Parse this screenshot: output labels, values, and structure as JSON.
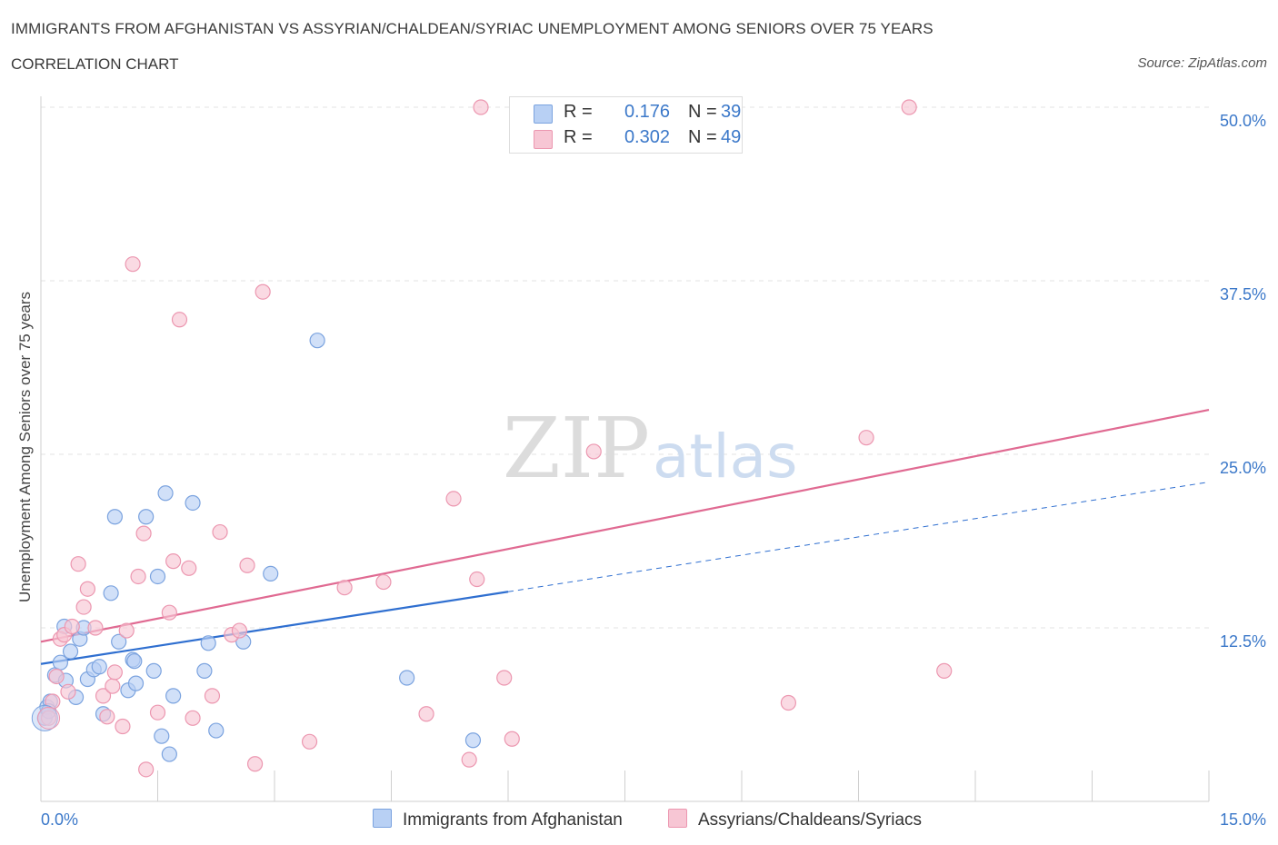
{
  "header": {
    "title": "IMMIGRANTS FROM AFGHANISTAN VS ASSYRIAN/CHALDEAN/SYRIAC UNEMPLOYMENT AMONG SENIORS OVER 75 YEARS",
    "subtitle": "CORRELATION CHART",
    "source": "Source: ZipAtlas.com"
  },
  "legend": {
    "blue": {
      "r_label": "R =",
      "r_value": "0.176",
      "n_label": "N =",
      "n_value": "39"
    },
    "pink": {
      "r_label": "R =",
      "r_value": "0.302",
      "n_label": "N =",
      "n_value": "49"
    }
  },
  "bottom_legend": {
    "blue_label": "Immigrants from Afghanistan",
    "pink_label": "Assyrians/Chaldeans/Syriacs"
  },
  "colors": {
    "blue_fill": "#b8d0f4",
    "blue_stroke": "#7ba3df",
    "blue_line": "#2f6fd0",
    "pink_fill": "#f7c6d4",
    "pink_stroke": "#ec97b0",
    "pink_line": "#e06a92",
    "tick_text": "#3b78c9",
    "grid": "#e3e3e3"
  },
  "chart_data": {
    "type": "scatter",
    "title": "IMMIGRANTS FROM AFGHANISTAN VS ASSYRIAN/CHALDEAN/SYRIAC UNEMPLOYMENT AMONG SENIORS OVER 75 YEARS",
    "xlabel": "",
    "ylabel": "Unemployment Among Seniors over 75 years",
    "xlim": [
      0,
      15
    ],
    "ylim": [
      0,
      50
    ],
    "x_tick_labels": [
      "0.0%",
      "15.0%"
    ],
    "y_ticks": [
      12.5,
      25,
      37.5,
      50
    ],
    "y_tick_labels": [
      "12.5%",
      "25.0%",
      "37.5%",
      "50.0%"
    ],
    "grid": true,
    "watermark": "ZIPatlas",
    "series": [
      {
        "name": "Immigrants from Afghanistan",
        "color": "#b8d0f4",
        "points": [
          [
            0.05,
            6.0
          ],
          [
            0.08,
            6.8
          ],
          [
            0.12,
            7.2
          ],
          [
            0.18,
            9.1
          ],
          [
            0.25,
            10.0
          ],
          [
            0.32,
            8.7
          ],
          [
            0.38,
            10.8
          ],
          [
            0.45,
            7.5
          ],
          [
            0.5,
            11.7
          ],
          [
            0.55,
            12.5
          ],
          [
            0.6,
            8.8
          ],
          [
            0.68,
            9.5
          ],
          [
            0.8,
            6.3
          ],
          [
            0.9,
            15.0
          ],
          [
            0.95,
            20.5
          ],
          [
            1.0,
            11.5
          ],
          [
            1.12,
            8.0
          ],
          [
            1.18,
            10.2
          ],
          [
            1.22,
            8.5
          ],
          [
            1.35,
            20.5
          ],
          [
            1.45,
            9.4
          ],
          [
            1.5,
            16.2
          ],
          [
            1.55,
            4.7
          ],
          [
            1.6,
            22.2
          ],
          [
            1.65,
            3.4
          ],
          [
            1.7,
            7.6
          ],
          [
            1.95,
            21.5
          ],
          [
            2.1,
            9.4
          ],
          [
            2.15,
            11.4
          ],
          [
            2.25,
            5.1
          ],
          [
            2.6,
            11.5
          ],
          [
            2.95,
            16.4
          ],
          [
            3.55,
            33.2
          ],
          [
            4.7,
            8.9
          ],
          [
            5.55,
            4.4
          ],
          [
            0.1,
            6.5
          ],
          [
            0.3,
            12.6
          ],
          [
            0.75,
            9.7
          ],
          [
            1.2,
            10.1
          ]
        ]
      },
      {
        "name": "Assyrians/Chaldeans/Syriacs",
        "color": "#f7c6d4",
        "points": [
          [
            0.1,
            6.0
          ],
          [
            0.15,
            7.2
          ],
          [
            0.2,
            9.0
          ],
          [
            0.25,
            11.7
          ],
          [
            0.3,
            12.0
          ],
          [
            0.35,
            7.9
          ],
          [
            0.4,
            12.6
          ],
          [
            0.48,
            17.1
          ],
          [
            0.55,
            14.0
          ],
          [
            0.6,
            15.3
          ],
          [
            0.7,
            12.5
          ],
          [
            0.8,
            7.6
          ],
          [
            0.85,
            6.1
          ],
          [
            0.92,
            8.3
          ],
          [
            0.95,
            9.3
          ],
          [
            1.05,
            5.4
          ],
          [
            1.1,
            12.3
          ],
          [
            1.18,
            38.7
          ],
          [
            1.25,
            16.2
          ],
          [
            1.32,
            19.3
          ],
          [
            1.35,
            2.3
          ],
          [
            1.5,
            6.4
          ],
          [
            1.65,
            13.6
          ],
          [
            1.7,
            17.3
          ],
          [
            1.78,
            34.7
          ],
          [
            1.9,
            16.8
          ],
          [
            1.95,
            6.0
          ],
          [
            2.2,
            7.6
          ],
          [
            2.3,
            19.4
          ],
          [
            2.45,
            12.0
          ],
          [
            2.55,
            12.3
          ],
          [
            2.65,
            17.0
          ],
          [
            2.75,
            2.7
          ],
          [
            2.85,
            36.7
          ],
          [
            3.45,
            4.3
          ],
          [
            3.9,
            15.4
          ],
          [
            4.4,
            15.8
          ],
          [
            4.95,
            6.3
          ],
          [
            5.3,
            21.8
          ],
          [
            5.5,
            3.0
          ],
          [
            5.6,
            16.0
          ],
          [
            5.65,
            50.0
          ],
          [
            5.95,
            8.9
          ],
          [
            6.05,
            4.5
          ],
          [
            7.1,
            25.2
          ],
          [
            9.6,
            7.1
          ],
          [
            10.6,
            26.2
          ],
          [
            11.15,
            50.0
          ],
          [
            11.6,
            9.4
          ]
        ]
      }
    ],
    "trend_lines": [
      {
        "series": "Immigrants from Afghanistan",
        "solid": [
          [
            0,
            9.9
          ],
          [
            6.0,
            15.1
          ]
        ],
        "dashed": [
          [
            6.0,
            15.1
          ],
          [
            15.0,
            23.0
          ]
        ]
      },
      {
        "series": "Assyrians/Chaldeans/Syriacs",
        "solid": [
          [
            0,
            11.5
          ],
          [
            15.0,
            28.2
          ]
        ]
      }
    ]
  }
}
